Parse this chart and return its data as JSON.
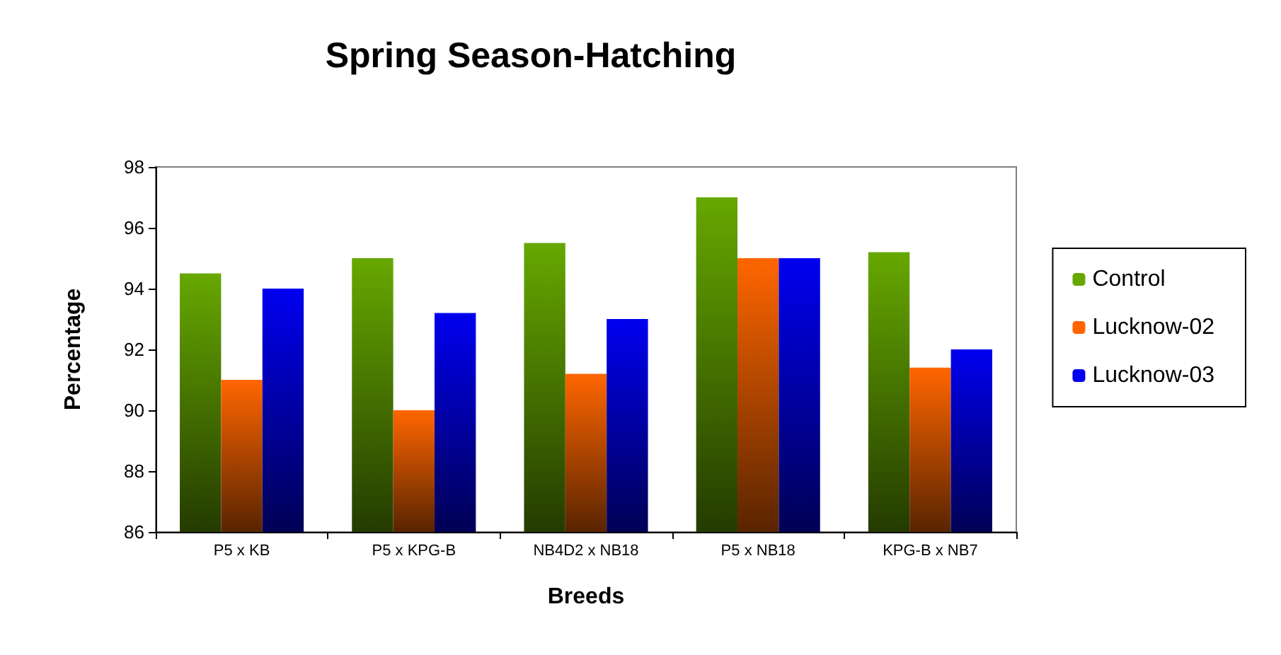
{
  "chart_data": {
    "type": "bar",
    "title": "Spring Season-Hatching",
    "xlabel": "Breeds",
    "ylabel": "Percentage",
    "categories": [
      "P5 x KB",
      "P5 x KPG-B",
      "NB4D2 x NB18",
      "P5 x NB18",
      "KPG-B x NB7"
    ],
    "series": [
      {
        "name": "Control",
        "color": "#66a800",
        "values": [
          94.5,
          95.0,
          95.5,
          97.0,
          95.2
        ]
      },
      {
        "name": "Lucknow-02",
        "color": "#ff6600",
        "values": [
          91.0,
          90.0,
          91.2,
          95.0,
          91.4
        ]
      },
      {
        "name": "Lucknow-03",
        "color": "#0000f0",
        "values": [
          94.0,
          93.2,
          93.0,
          95.0,
          92.0
        ]
      }
    ],
    "ylim": [
      86,
      98
    ],
    "yticks": [
      86,
      88,
      90,
      92,
      94,
      96,
      98
    ],
    "grid": false,
    "legend": "right"
  }
}
